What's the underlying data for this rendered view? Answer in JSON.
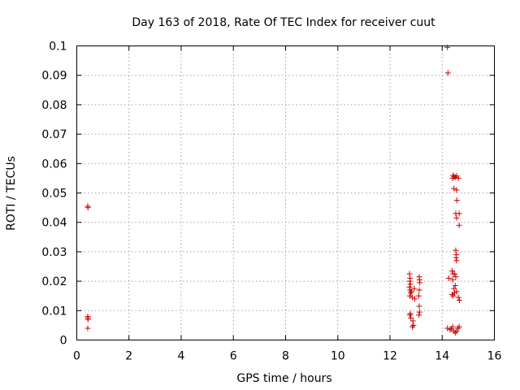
{
  "chart_data": {
    "type": "scatter",
    "title": "Day 163 of 2018, Rate Of TEC Index for receiver cuut",
    "xlabel": "GPS time / hours",
    "ylabel": "ROTI / TECUs",
    "xlim": [
      0,
      16
    ],
    "ylim": [
      0,
      0.1
    ],
    "xticks": [
      "0",
      "2",
      "4",
      "6",
      "8",
      "10",
      "12",
      "14",
      "16"
    ],
    "yticks": [
      "0",
      "0.01",
      "0.02",
      "0.03",
      "0.04",
      "0.05",
      "0.06",
      "0.07",
      "0.08",
      "0.09",
      "0.1"
    ],
    "grid": true,
    "marker": "+",
    "color": "#cc0000",
    "points": [
      [
        0.42,
        0.0455
      ],
      [
        0.43,
        0.045
      ],
      [
        0.42,
        0.008
      ],
      [
        0.43,
        0.0075
      ],
      [
        0.43,
        0.007
      ],
      [
        0.42,
        0.004
      ],
      [
        12.75,
        0.0225
      ],
      [
        12.77,
        0.021
      ],
      [
        12.76,
        0.02
      ],
      [
        12.78,
        0.019
      ],
      [
        12.75,
        0.018
      ],
      [
        12.77,
        0.017
      ],
      [
        12.8,
        0.016
      ],
      [
        12.76,
        0.015
      ],
      [
        12.85,
        0.0145
      ],
      [
        12.78,
        0.009
      ],
      [
        12.76,
        0.0085
      ],
      [
        12.8,
        0.0075
      ],
      [
        12.88,
        0.0065
      ],
      [
        12.9,
        0.005
      ],
      [
        12.86,
        0.0045
      ],
      [
        12.95,
        0.014
      ],
      [
        12.93,
        0.0175
      ],
      [
        12.82,
        0.0165
      ],
      [
        13.12,
        0.0215
      ],
      [
        13.13,
        0.0205
      ],
      [
        13.14,
        0.0195
      ],
      [
        13.12,
        0.017
      ],
      [
        13.1,
        0.015
      ],
      [
        13.12,
        0.0115
      ],
      [
        13.13,
        0.0095
      ],
      [
        13.11,
        0.0085
      ],
      [
        14.2,
        0.0995
      ],
      [
        14.22,
        0.0908
      ],
      [
        14.42,
        0.056
      ],
      [
        14.45,
        0.0555
      ],
      [
        14.5,
        0.0553
      ],
      [
        14.55,
        0.0558
      ],
      [
        14.62,
        0.055
      ],
      [
        14.4,
        0.055
      ],
      [
        14.45,
        0.0515
      ],
      [
        14.55,
        0.051
      ],
      [
        14.56,
        0.0475
      ],
      [
        14.52,
        0.043
      ],
      [
        14.65,
        0.043
      ],
      [
        14.55,
        0.0415
      ],
      [
        14.65,
        0.039
      ],
      [
        14.52,
        0.0305
      ],
      [
        14.54,
        0.029
      ],
      [
        14.53,
        0.028
      ],
      [
        14.55,
        0.027
      ],
      [
        14.38,
        0.0235
      ],
      [
        14.42,
        0.0225
      ],
      [
        14.48,
        0.0225
      ],
      [
        14.52,
        0.0215
      ],
      [
        14.25,
        0.021
      ],
      [
        14.4,
        0.0205
      ],
      [
        14.5,
        0.0185
      ],
      [
        14.45,
        0.0175
      ],
      [
        14.55,
        0.0165
      ],
      [
        14.47,
        0.016
      ],
      [
        14.38,
        0.0155
      ],
      [
        14.42,
        0.015
      ],
      [
        14.62,
        0.0145
      ],
      [
        14.66,
        0.0135
      ],
      [
        14.2,
        0.004
      ],
      [
        14.3,
        0.0035
      ],
      [
        14.4,
        0.0045
      ],
      [
        14.45,
        0.003
      ],
      [
        14.5,
        0.0025
      ],
      [
        14.55,
        0.003
      ],
      [
        14.6,
        0.004
      ],
      [
        14.65,
        0.0045
      ],
      [
        14.35,
        0.0038
      ]
    ]
  }
}
